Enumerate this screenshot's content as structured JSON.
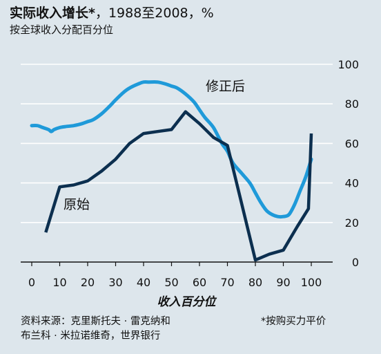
{
  "header": {
    "title_main": "实际收入增长*",
    "title_rest": "，1988至2008，%",
    "subtitle": "按全球收入分配百分位"
  },
  "footer": {
    "source_line1": "资料来源：克里斯托夫 · 雷克纳和",
    "source_line2": "布兰科 · 米拉诺维奇，世界银行",
    "footnote": "*按购买力平价"
  },
  "colors": {
    "background": "#dde6ec",
    "adjusted": "#1f9ad9",
    "original": "#0c2f4f",
    "grid": "#ffffff",
    "axis": "#111111"
  },
  "chart_data": {
    "type": "line",
    "xlabel": "收入百分位",
    "ylabel": "",
    "xlim": [
      0,
      100
    ],
    "ylim": [
      0,
      100
    ],
    "x_ticks": [
      0,
      10,
      20,
      30,
      40,
      50,
      60,
      70,
      80,
      90,
      100
    ],
    "y_ticks": [
      0,
      20,
      40,
      60,
      80,
      100
    ],
    "grid": true,
    "series": [
      {
        "name": "修正后",
        "color": "#1f9ad9",
        "x": [
          0,
          2,
          4,
          6,
          7,
          8,
          10,
          12,
          15,
          18,
          20,
          22,
          25,
          28,
          30,
          33,
          35,
          38,
          40,
          42,
          45,
          48,
          50,
          52,
          55,
          58,
          60,
          62,
          65,
          68,
          70,
          72,
          75,
          78,
          80,
          82,
          84,
          86,
          88,
          90,
          92,
          94,
          96,
          98,
          100
        ],
        "y": [
          69,
          69,
          68,
          67,
          66,
          67,
          68,
          68.5,
          69,
          70,
          71,
          72,
          75,
          79,
          82,
          86,
          88,
          90,
          91,
          91,
          91,
          90,
          89,
          88,
          85,
          81,
          77,
          73,
          68,
          60,
          56,
          50,
          45,
          40,
          35,
          30,
          26,
          24,
          23,
          23,
          24,
          29,
          36,
          43,
          52
        ]
      },
      {
        "name": "原始",
        "color": "#0c2f4f",
        "x": [
          5,
          10,
          15,
          20,
          25,
          30,
          35,
          40,
          45,
          50,
          55,
          60,
          65,
          70,
          75,
          80,
          85,
          90,
          95,
          99,
          100
        ],
        "y": [
          15,
          38,
          39,
          41,
          46,
          52,
          60,
          65,
          66,
          67,
          76,
          70,
          63,
          59,
          30,
          1,
          4,
          6,
          18,
          27,
          65
        ]
      }
    ],
    "annotations": [
      {
        "text": "修正后",
        "series": "修正后"
      },
      {
        "text": "原始",
        "series": "原始"
      }
    ]
  }
}
